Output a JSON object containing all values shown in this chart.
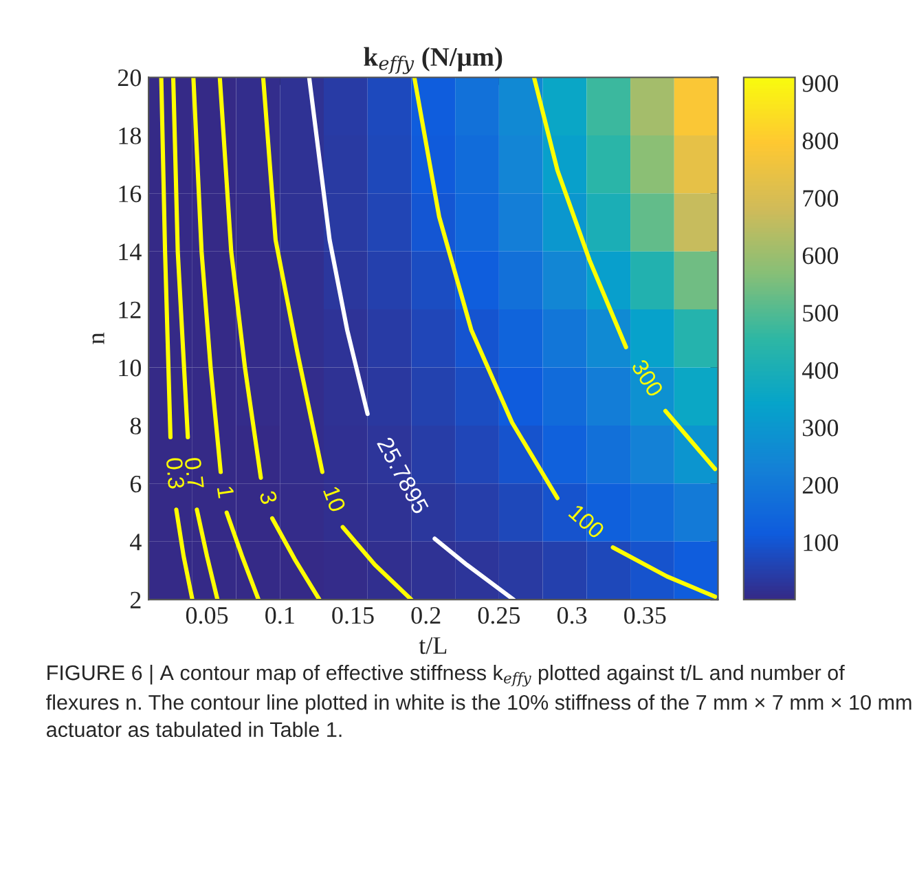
{
  "chart_data": {
    "type": "heatmap",
    "title": "k$_{effy}$ (N/μm)",
    "xlabel": "t/L",
    "ylabel": "n",
    "cells": [
      [
        0,
        2,
        8,
        21,
        42,
        74,
        118,
        178,
        255,
        352,
        471,
        614,
        783
      ],
      [
        0,
        2,
        8,
        20,
        39,
        69,
        111,
        167,
        239,
        330,
        441,
        575,
        733
      ],
      [
        0,
        2,
        7,
        18,
        36,
        63,
        101,
        151,
        217,
        299,
        400,
        522,
        666
      ],
      [
        0,
        2,
        6,
        14,
        29,
        51,
        81,
        122,
        175,
        242,
        324,
        422,
        538
      ],
      [
        0,
        1,
        5,
        11,
        23,
        40,
        65,
        98,
        140,
        193,
        258,
        336,
        429
      ],
      [
        0,
        1,
        4,
        10,
        19,
        34,
        54,
        81,
        116,
        160,
        214,
        279,
        356
      ],
      [
        0,
        1,
        3,
        8,
        16,
        27,
        44,
        66,
        95,
        131,
        176,
        229,
        292
      ],
      [
        0,
        1,
        2,
        6,
        11,
        20,
        31,
        47,
        68,
        94,
        125,
        163,
        208
      ],
      [
        0,
        0,
        1,
        3,
        6,
        11,
        18,
        27,
        39,
        53,
        71,
        93,
        118
      ]
    ],
    "clim": [
      0,
      910
    ],
    "cticks": [
      100,
      200,
      300,
      400,
      500,
      600,
      700,
      800,
      900
    ],
    "xlim": [
      0.01,
      0.4
    ],
    "xticks": [
      0.05,
      0.1,
      0.15,
      0.2,
      0.25,
      0.3,
      0.35
    ],
    "ylim": [
      2,
      20
    ],
    "yticks": [
      2,
      4,
      6,
      8,
      10,
      12,
      14,
      16,
      18,
      20
    ],
    "series": [
      {
        "type": "line",
        "name": "0.3",
        "color": "#ffff00",
        "x": [
          0.0187,
          0.0213,
          0.025
        ],
        "values": [
          20,
          14,
          7.6
        ]
      },
      {
        "type": "line",
        "color": "#ffff00",
        "x": [
          0.029,
          0.034,
          0.04
        ],
        "values": [
          5.1,
          3.5,
          2
        ]
      },
      {
        "type": "line",
        "name": "0.7",
        "color": "#ffff00",
        "x": [
          0.0269,
          0.03,
          0.0369
        ],
        "values": [
          20,
          14,
          7.6
        ]
      },
      {
        "type": "line",
        "color": "#ffff00",
        "x": [
          0.0431,
          0.05,
          0.0572
        ],
        "values": [
          5.1,
          3.5,
          2
        ]
      },
      {
        "type": "line",
        "name": "1",
        "color": "#ffff00",
        "x": [
          0.0407,
          0.0463,
          0.0525,
          0.0594
        ],
        "values": [
          20,
          14,
          10,
          6.4
        ]
      },
      {
        "type": "line",
        "color": "#ffff00",
        "x": [
          0.0635,
          0.074,
          0.0853
        ],
        "values": [
          5,
          3.5,
          2
        ]
      },
      {
        "type": "line",
        "name": "3",
        "color": "#ffff00",
        "x": [
          0.0588,
          0.0666,
          0.076,
          0.0869
        ],
        "values": [
          20,
          14,
          10,
          6.2
        ]
      },
      {
        "type": "line",
        "color": "#ffff00",
        "x": [
          0.0947,
          0.11,
          0.127
        ],
        "values": [
          4.8,
          3.4,
          2
        ]
      },
      {
        "type": "line",
        "name": "10",
        "color": "#ffff00",
        "x": [
          0.0885,
          0.097,
          0.112,
          0.129
        ],
        "values": [
          20,
          14.4,
          10.5,
          6.4
        ]
      },
      {
        "type": "line",
        "color": "#ffff00",
        "x": [
          0.143,
          0.165,
          0.19
        ],
        "values": [
          4.5,
          3.2,
          2
        ]
      },
      {
        "type": "line",
        "name": "25.7895",
        "color": "#ffffff",
        "x": [
          0.12,
          0.134,
          0.146,
          0.16
        ],
        "values": [
          20,
          14.4,
          11.3,
          8.4
        ]
      },
      {
        "type": "line",
        "color": "#ffffff",
        "x": [
          0.206,
          0.228,
          0.26
        ],
        "values": [
          4.1,
          3.2,
          2
        ]
      },
      {
        "type": "line",
        "name": "100",
        "color": "#ffff00",
        "x": [
          0.192,
          0.209,
          0.231,
          0.259,
          0.29
        ],
        "values": [
          20,
          15.2,
          11.3,
          8.1,
          5.5
        ]
      },
      {
        "type": "line",
        "color": "#ffff00",
        "x": [
          0.328,
          0.365,
          0.398
        ],
        "values": [
          3.8,
          2.8,
          2.1
        ]
      },
      {
        "type": "line",
        "name": "300",
        "color": "#ffff00",
        "x": [
          0.274,
          0.29,
          0.312,
          0.337
        ],
        "values": [
          20,
          16.8,
          13.7,
          10.7
        ]
      },
      {
        "type": "line",
        "color": "#ffff00",
        "x": [
          0.364,
          0.398
        ],
        "values": [
          8.5,
          6.5
        ]
      }
    ],
    "annotations": [
      "FIGURE 6 | A contour map of effective stiffness k$_{effy}$ plotted against t/L and number of flexures n. The contour line plotted in white is the 10% stiffness of the 7 mm × 7 mm × 10 mm actuator as tabulated in Table 1."
    ],
    "grid": false
  }
}
